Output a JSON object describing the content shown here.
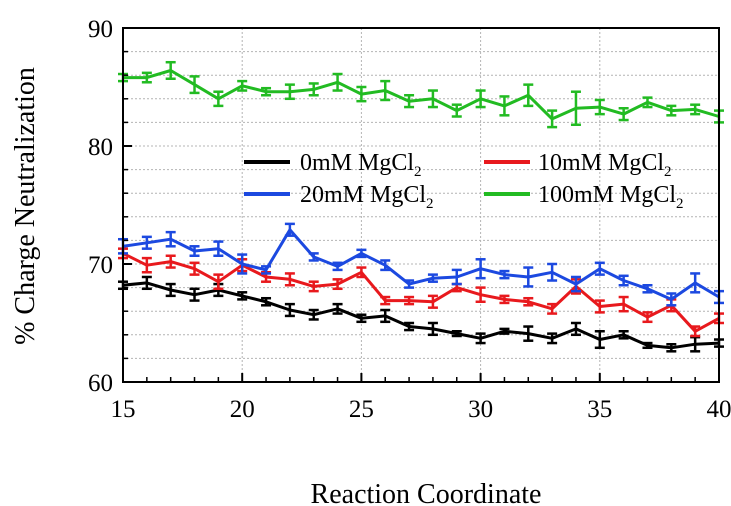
{
  "chart_data": {
    "type": "line",
    "xlabel": "Reaction Coordinate",
    "ylabel": "% Charge Neutralization",
    "xlim": [
      15,
      40
    ],
    "ylim": [
      60,
      90
    ],
    "xticks": [
      15,
      20,
      25,
      30,
      35,
      40
    ],
    "yticks": [
      60,
      70,
      80,
      90
    ],
    "x_tick_labels": [
      "15",
      "20",
      "25",
      "30",
      "35",
      "40"
    ],
    "y_tick_labels": [
      "60",
      "70",
      "80",
      "90"
    ],
    "grid": true,
    "legend_position": "center-right",
    "x": [
      15,
      16,
      17,
      18,
      19,
      20,
      21,
      22,
      23,
      24,
      25,
      26,
      27,
      28,
      29,
      30,
      31,
      32,
      33,
      34,
      35,
      36,
      37,
      38,
      39,
      40
    ],
    "series": [
      {
        "name": "0mM MgCl",
        "name_subscript": "2",
        "color": "#000000",
        "values": [
          68.2,
          68.4,
          67.8,
          67.4,
          67.8,
          67.3,
          66.8,
          66.1,
          65.7,
          66.2,
          65.4,
          65.6,
          64.7,
          64.5,
          64.1,
          63.7,
          64.3,
          64.1,
          63.7,
          64.5,
          63.6,
          64.0,
          63.1,
          62.9,
          63.2,
          63.3
        ],
        "errors": [
          0.3,
          0.5,
          0.5,
          0.5,
          0.5,
          0.3,
          0.3,
          0.5,
          0.4,
          0.4,
          0.3,
          0.5,
          0.3,
          0.5,
          0.2,
          0.4,
          0.2,
          0.6,
          0.4,
          0.5,
          0.7,
          0.3,
          0.2,
          0.3,
          0.6,
          0.3
        ]
      },
      {
        "name": "10mM MgCl",
        "name_subscript": "2",
        "color": "#e8191d",
        "values": [
          70.9,
          69.9,
          70.2,
          69.6,
          68.5,
          69.9,
          68.9,
          68.7,
          68.1,
          68.3,
          69.3,
          66.9,
          66.9,
          66.8,
          68.0,
          67.4,
          67.0,
          66.8,
          66.2,
          68.1,
          66.4,
          66.6,
          65.5,
          66.5,
          64.3,
          65.4
        ],
        "errors": [
          0.4,
          0.6,
          0.5,
          0.5,
          0.6,
          0.5,
          0.4,
          0.5,
          0.4,
          0.4,
          0.4,
          0.3,
          0.3,
          0.5,
          0.3,
          0.6,
          0.3,
          0.3,
          0.4,
          0.6,
          0.5,
          0.6,
          0.4,
          0.5,
          0.4,
          0.4
        ]
      },
      {
        "name": "20mM MgCl",
        "name_subscript": "2",
        "color": "#1c49e0",
        "values": [
          71.5,
          71.8,
          72.1,
          71.1,
          71.3,
          70.0,
          69.5,
          72.9,
          70.6,
          69.8,
          70.9,
          69.9,
          68.3,
          68.8,
          68.9,
          69.6,
          69.1,
          68.9,
          69.3,
          68.3,
          69.6,
          68.6,
          67.9,
          67.0,
          68.4,
          67.2
        ],
        "errors": [
          0.6,
          0.5,
          0.6,
          0.4,
          0.6,
          0.8,
          0.3,
          0.5,
          0.3,
          0.3,
          0.3,
          0.4,
          0.3,
          0.3,
          0.6,
          0.8,
          0.3,
          0.8,
          0.7,
          0.6,
          0.5,
          0.4,
          0.3,
          0.5,
          0.8,
          0.5
        ]
      },
      {
        "name": "100mM MgCl",
        "name_subscript": "2",
        "color": "#22bb22",
        "values": [
          85.8,
          85.8,
          86.4,
          85.2,
          84.0,
          85.1,
          84.6,
          84.6,
          84.8,
          85.4,
          84.4,
          84.7,
          83.8,
          84.0,
          83.0,
          84.0,
          83.4,
          84.3,
          82.3,
          83.2,
          83.3,
          82.7,
          83.7,
          83.0,
          83.1,
          82.5
        ],
        "errors": [
          0.3,
          0.4,
          0.7,
          0.7,
          0.6,
          0.4,
          0.3,
          0.6,
          0.5,
          0.7,
          0.6,
          0.8,
          0.5,
          0.7,
          0.5,
          0.7,
          0.8,
          0.9,
          0.7,
          1.4,
          0.6,
          0.5,
          0.4,
          0.4,
          0.4,
          0.5
        ]
      }
    ]
  }
}
